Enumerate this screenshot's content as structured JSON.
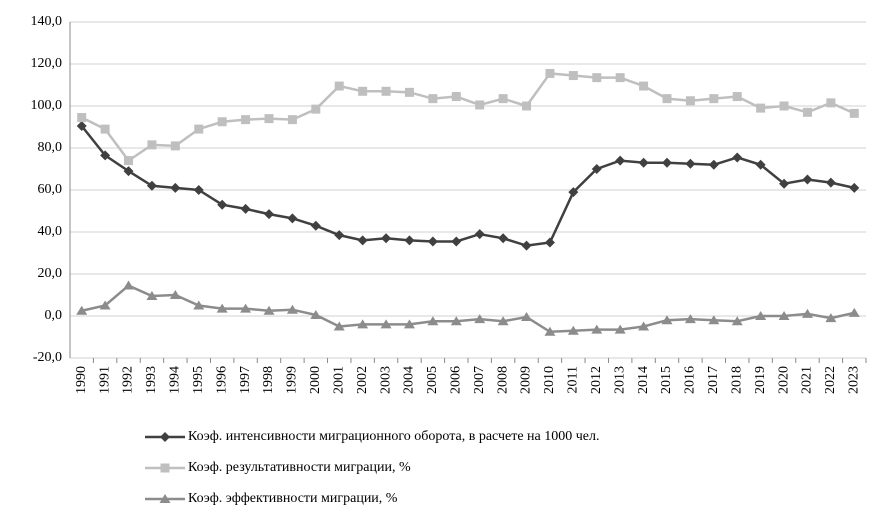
{
  "chart_data": {
    "type": "line",
    "categories": [
      "1990",
      "1991",
      "1992",
      "1993",
      "1994",
      "1995",
      "1996",
      "1997",
      "1998",
      "1999",
      "2000",
      "2001",
      "2002",
      "2003",
      "2004",
      "2005",
      "2006",
      "2007",
      "2008",
      "2009",
      "2010",
      "2011",
      "2012",
      "2013",
      "2014",
      "2015",
      "2016",
      "2017",
      "2018",
      "2019",
      "2020",
      "2021",
      "2022",
      "2023"
    ],
    "series": [
      {
        "name": "Коэф. интенсивности миграционного оборота, в расчете на 1000 чел.",
        "color": "#404040",
        "marker": "diamond",
        "values": [
          90.5,
          76.5,
          69,
          62,
          61,
          60,
          53,
          51,
          48.5,
          46.5,
          43,
          38.5,
          36,
          37,
          36,
          35.5,
          35.5,
          39,
          37,
          33.5,
          35,
          59,
          70,
          74,
          73,
          73,
          72.5,
          72,
          75.5,
          72,
          63,
          65,
          63.5,
          61
        ]
      },
      {
        "name": "Коэф. результативности миграции, %",
        "color": "#bfbfbf",
        "marker": "square",
        "values": [
          94.5,
          89,
          74,
          81.5,
          81,
          89,
          92.5,
          93.5,
          94,
          93.5,
          98.5,
          109.5,
          107,
          107,
          106.5,
          103.5,
          104.5,
          100.5,
          103.5,
          100,
          115.5,
          114.5,
          113.5,
          113.5,
          109.5,
          103.5,
          102.5,
          103.5,
          104.5,
          99,
          100,
          97,
          101.5,
          96.5
        ]
      },
      {
        "name": "Коэф. эффективности миграции, %",
        "color": "#8c8c8c",
        "marker": "triangle",
        "values": [
          2.5,
          5,
          14.5,
          9.5,
          10,
          5,
          3.5,
          3.5,
          2.5,
          3,
          0.5,
          -5,
          -4,
          -4,
          -4,
          -2.5,
          -2.5,
          -1.5,
          -2.5,
          -0.5,
          -7.5,
          -7,
          -6.5,
          -6.5,
          -5,
          -2,
          -1.5,
          -2,
          -2.5,
          0,
          0,
          1,
          -1,
          1.5
        ]
      }
    ],
    "ylim": [
      -20,
      140
    ],
    "yticks": [
      {
        "value": -20,
        "label": "-20,0"
      },
      {
        "value": 0,
        "label": "0,0"
      },
      {
        "value": 20,
        "label": "20,0"
      },
      {
        "value": 40,
        "label": "40,0"
      },
      {
        "value": 60,
        "label": "60,0"
      },
      {
        "value": 80,
        "label": "80,0"
      },
      {
        "value": 100,
        "label": "100,0"
      },
      {
        "value": 120,
        "label": "120,0"
      },
      {
        "value": 140,
        "label": "140,0"
      }
    ],
    "grid": true
  }
}
